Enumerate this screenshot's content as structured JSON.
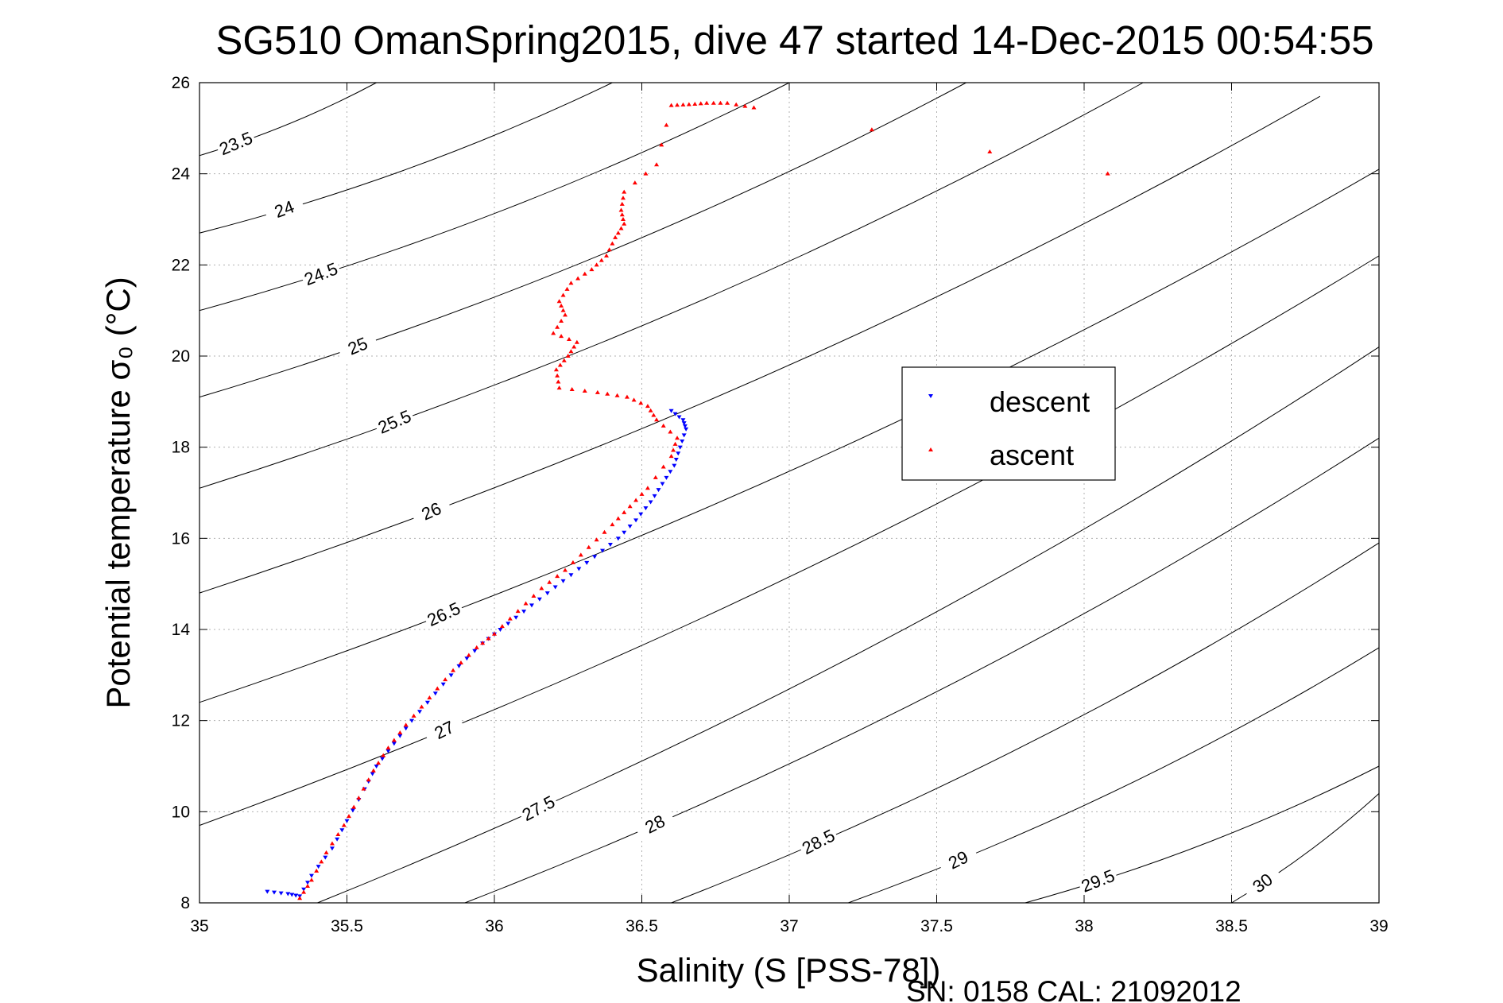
{
  "title": "SG510 OmanSpring2015, dive 47 started 14-Dec-2015 00:54:55",
  "footer": "SN: 0158  CAL: 21092012",
  "colors": {
    "descent": "#0000ff",
    "ascent": "#ff0000",
    "contour": "#000000",
    "grid": "#b0b0b0"
  },
  "chart_data": {
    "type": "scatter",
    "title": "SG510 OmanSpring2015, dive 47 started 14-Dec-2015 00:54:55",
    "xlabel": "Salinity (S [PSS-78])",
    "ylabel": "Potential temperature σ₀ (°C)",
    "xlim": [
      35,
      39
    ],
    "ylim": [
      8,
      26
    ],
    "xticks": [
      "35",
      "35.5",
      "36",
      "36.5",
      "37",
      "37.5",
      "38",
      "38.5",
      "39"
    ],
    "yticks": [
      "8",
      "10",
      "12",
      "14",
      "16",
      "18",
      "20",
      "22",
      "24",
      "26"
    ],
    "grid": true,
    "legend_position": "right-center",
    "legend": [
      "descent",
      "ascent"
    ],
    "contours": [
      {
        "level": "23.5",
        "points": [
          [
            35,
            24.4
          ],
          [
            35.6,
            26.0
          ]
        ]
      },
      {
        "level": "24",
        "points": [
          [
            35,
            22.7
          ],
          [
            36.4,
            26.0
          ]
        ]
      },
      {
        "level": "24.5",
        "points": [
          [
            35,
            21.0
          ],
          [
            37.0,
            26.0
          ]
        ]
      },
      {
        "level": "25",
        "points": [
          [
            35,
            19.1
          ],
          [
            37.6,
            26.0
          ]
        ]
      },
      {
        "level": "25.5",
        "points": [
          [
            35,
            17.1
          ],
          [
            38.2,
            26.0
          ]
        ]
      },
      {
        "level": "26",
        "points": [
          [
            35,
            14.8
          ],
          [
            38.8,
            25.7
          ]
        ]
      },
      {
        "level": "26.5",
        "points": [
          [
            35,
            12.4
          ],
          [
            39,
            24.1
          ]
        ]
      },
      {
        "level": "27",
        "points": [
          [
            35,
            9.7
          ],
          [
            39,
            22.2
          ]
        ]
      },
      {
        "level": "27.5",
        "points": [
          [
            35.4,
            8.0
          ],
          [
            39,
            20.2
          ]
        ]
      },
      {
        "level": "28",
        "points": [
          [
            35.9,
            8.0
          ],
          [
            39,
            18.2
          ]
        ]
      },
      {
        "level": "28.5",
        "points": [
          [
            36.6,
            8.0
          ],
          [
            39,
            15.9
          ]
        ]
      },
      {
        "level": "29",
        "points": [
          [
            37.2,
            8.0
          ],
          [
            39,
            13.6
          ]
        ]
      },
      {
        "level": "29.5",
        "points": [
          [
            37.8,
            8.0
          ],
          [
            39,
            11.0
          ]
        ]
      },
      {
        "level": "30",
        "points": [
          [
            38.5,
            8.0
          ],
          [
            39,
            10.4
          ]
        ]
      }
    ],
    "series": [
      {
        "name": "descent",
        "marker": "triangle-down",
        "points": [
          [
            35.23,
            8.25
          ],
          [
            35.3,
            8.2
          ],
          [
            35.34,
            8.15
          ],
          [
            35.38,
            8.6
          ],
          [
            35.45,
            9.2
          ],
          [
            35.5,
            9.8
          ],
          [
            35.56,
            10.5
          ],
          [
            35.6,
            11.0
          ],
          [
            35.66,
            11.5
          ],
          [
            35.72,
            12.0
          ],
          [
            35.8,
            12.6
          ],
          [
            35.88,
            13.2
          ],
          [
            35.96,
            13.7
          ],
          [
            36.02,
            14.0
          ],
          [
            36.1,
            14.4
          ],
          [
            36.18,
            14.8
          ],
          [
            36.26,
            15.2
          ],
          [
            36.34,
            15.6
          ],
          [
            36.42,
            16.0
          ],
          [
            36.48,
            16.4
          ],
          [
            36.53,
            16.8
          ],
          [
            36.57,
            17.2
          ],
          [
            36.61,
            17.6
          ],
          [
            36.63,
            18.0
          ],
          [
            36.65,
            18.4
          ],
          [
            36.64,
            18.6
          ],
          [
            36.6,
            18.8
          ]
        ]
      },
      {
        "name": "ascent",
        "marker": "triangle-up",
        "points": [
          [
            35.34,
            8.1
          ],
          [
            35.38,
            8.5
          ],
          [
            35.43,
            9.1
          ],
          [
            35.49,
            9.7
          ],
          [
            35.54,
            10.3
          ],
          [
            35.59,
            10.9
          ],
          [
            35.64,
            11.4
          ],
          [
            35.7,
            11.9
          ],
          [
            35.78,
            12.5
          ],
          [
            35.86,
            13.1
          ],
          [
            35.94,
            13.6
          ],
          [
            36.0,
            13.9
          ],
          [
            36.08,
            14.4
          ],
          [
            36.16,
            14.9
          ],
          [
            36.24,
            15.3
          ],
          [
            36.32,
            15.8
          ],
          [
            36.4,
            16.3
          ],
          [
            36.46,
            16.7
          ],
          [
            36.52,
            17.1
          ],
          [
            36.6,
            17.8
          ],
          [
            36.62,
            18.2
          ],
          [
            36.55,
            18.6
          ],
          [
            36.52,
            18.9
          ],
          [
            36.45,
            19.1
          ],
          [
            36.35,
            19.2
          ],
          [
            36.22,
            19.3
          ],
          [
            36.21,
            19.7
          ],
          [
            36.25,
            20.0
          ],
          [
            36.28,
            20.3
          ],
          [
            36.2,
            20.5
          ],
          [
            36.24,
            20.9
          ],
          [
            36.22,
            21.2
          ],
          [
            36.26,
            21.6
          ],
          [
            36.33,
            21.9
          ],
          [
            36.38,
            22.2
          ],
          [
            36.41,
            22.6
          ],
          [
            36.44,
            22.9
          ],
          [
            36.43,
            23.2
          ],
          [
            36.44,
            23.6
          ],
          [
            36.55,
            24.2
          ],
          [
            36.6,
            25.5
          ],
          [
            36.66,
            25.52
          ],
          [
            36.72,
            25.55
          ],
          [
            36.79,
            25.55
          ],
          [
            36.88,
            25.45
          ],
          [
            38.08,
            24.0
          ]
        ]
      }
    ]
  }
}
